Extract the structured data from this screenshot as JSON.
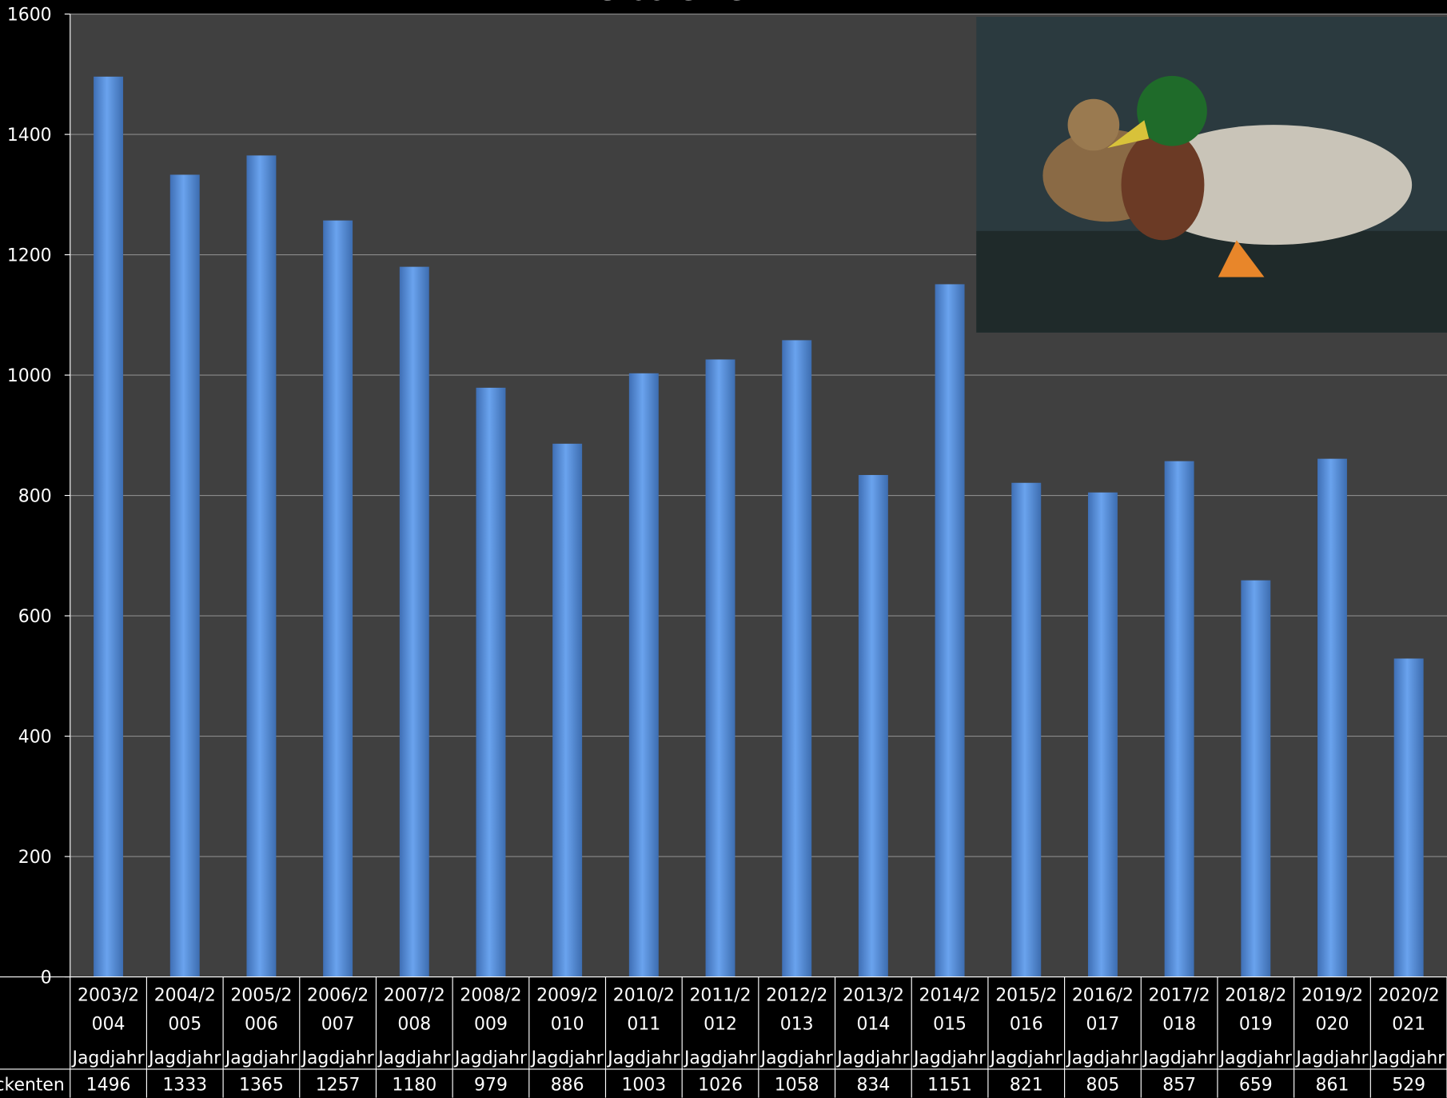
{
  "chart_data": {
    "type": "bar",
    "title": "Stockenten",
    "categories": [
      "2003/2004 Jagdjahr",
      "2004/2005 Jagdjahr",
      "2005/2006 Jagdjahr",
      "2006/2007 Jagdjahr",
      "2007/2008 Jagdjahr",
      "2008/2009 Jagdjahr",
      "2009/2010 Jagdjahr",
      "2010/2011 Jagdjahr",
      "2011/2012 Jagdjahr",
      "2012/2013 Jagdjahr",
      "2013/2014 Jagdjahr",
      "2014/2015 Jagdjahr",
      "2015/2016 Jagdjahr",
      "2016/2017 Jagdjahr",
      "2017/2018 Jagdjahr",
      "2018/2019 Jagdjahr",
      "2019/2020 Jagdjahr",
      "2020/2021 Jagdjahr"
    ],
    "series": [
      {
        "name": "Stockenten",
        "color": "#5b93dd",
        "values": [
          1496,
          1333,
          1365,
          1257,
          1180,
          979,
          886,
          1003,
          1026,
          1058,
          834,
          1151,
          821,
          805,
          857,
          659,
          861,
          529
        ]
      }
    ],
    "ylim": [
      0,
      1600
    ],
    "yticks": [
      0,
      200,
      400,
      600,
      800,
      1000,
      1200,
      1400,
      1600
    ],
    "grid": true
  }
}
